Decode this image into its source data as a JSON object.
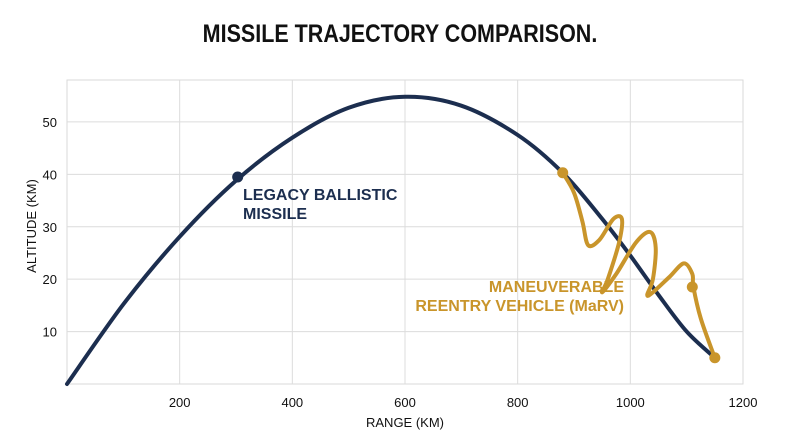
{
  "chart_data": {
    "type": "line",
    "title": "MISSILE TRAJECTORY COMPARISON.",
    "xlabel": "RANGE (KM)",
    "ylabel": "ALTITUDE (KM)",
    "xlim": [
      0,
      1200
    ],
    "ylim": [
      0,
      58
    ],
    "x_ticks": [
      200,
      400,
      600,
      800,
      1000,
      1200
    ],
    "y_ticks": [
      10,
      20,
      30,
      40,
      50
    ],
    "grid": true,
    "series": [
      {
        "name": "LEGACY BALLISTIC MISSILE",
        "label_lines": [
          "LEGACY BALLISTIC",
          "MISSILE"
        ],
        "color": "#1c2e4f",
        "x": [
          0,
          100,
          200,
          300,
          400,
          500,
          600,
          700,
          800,
          880,
          950,
          1000,
          1050,
          1100,
          1150
        ],
        "y": [
          0,
          15.2,
          28.1,
          38.8,
          47,
          52.7,
          54.8,
          53.1,
          47.5,
          40.3,
          31.5,
          24.5,
          17,
          10,
          5
        ],
        "markers": [
          {
            "x": 303,
            "y": 39.5
          }
        ]
      },
      {
        "name": "MANEUVERABLE REENTRY VEHICLE (MaRV)",
        "label_lines": [
          "MANEUVERABLE",
          "REENTRY VEHICLE (MaRV)"
        ],
        "color": "#c9952b",
        "x": [
          880,
          900,
          915,
          925,
          945,
          970,
          985,
          980,
          960,
          950,
          975,
          1010,
          1035,
          1045,
          1040,
          1030,
          1040,
          1070,
          1095,
          1110,
          1112,
          1125,
          1150
        ],
        "y": [
          40.3,
          36.5,
          31,
          26.5,
          27.5,
          31.5,
          31.5,
          27,
          20,
          17.5,
          21,
          27,
          29,
          26,
          20,
          17,
          17.5,
          20.5,
          23,
          21,
          18.5,
          12.5,
          5
        ],
        "markers": [
          {
            "x": 880,
            "y": 40.3
          },
          {
            "x": 1110,
            "y": 18.5
          },
          {
            "x": 1150,
            "y": 5
          }
        ]
      }
    ]
  }
}
